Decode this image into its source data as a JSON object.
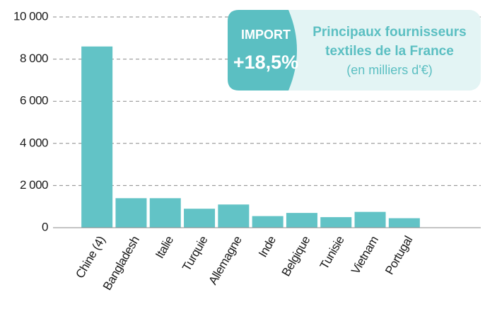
{
  "chart_data": {
    "type": "bar",
    "badge_label": "IMPORT",
    "badge_value": "+18,5%",
    "title_lines": [
      "Principaux fournisseurs",
      "textiles de la France"
    ],
    "subtitle": "(en milliers d'€)",
    "categories": [
      "Chine (4)",
      "Bangladesh",
      "Italie",
      "Turquie",
      "Allemagne",
      "Inde",
      "Belgique",
      "Tunisie",
      "Vietnam",
      "Portugal"
    ],
    "values": [
      8600,
      1400,
      1400,
      900,
      1100,
      550,
      700,
      500,
      750,
      450
    ],
    "color": "#62c3c6",
    "ylim": [
      0,
      10000
    ],
    "yticks": [
      0,
      {
        "value": 2000,
        "label": "2 000"
      },
      {
        "value": 4000,
        "label": "4 000"
      },
      {
        "value": 6000,
        "label": "6 000"
      },
      {
        "value": 8000,
        "label": "8 000"
      },
      {
        "value": 10000,
        "label": "10 000"
      }
    ],
    "grid": true
  }
}
